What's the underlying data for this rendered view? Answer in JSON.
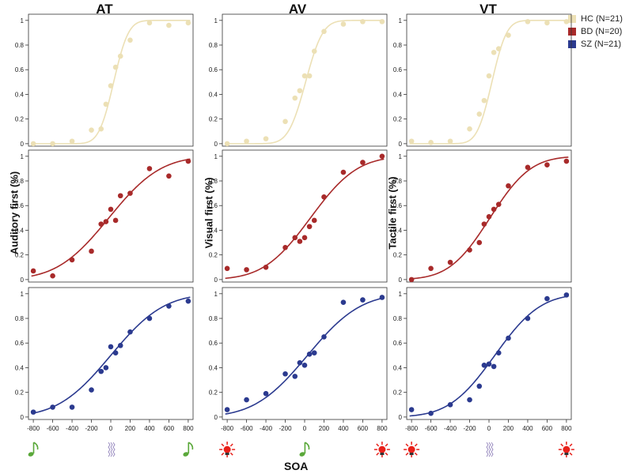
{
  "chart_data": {
    "type": "scatter",
    "columns": [
      "AT",
      "AV",
      "VT"
    ],
    "row_ylabels": [
      "Auditory first (%)",
      "Visual first (%)",
      "Tactile first (%)"
    ],
    "xlabel": "SOA",
    "x_ticks": [
      "-800",
      "-600",
      "-400",
      "-200",
      "0",
      "200",
      "400",
      "600",
      "800"
    ],
    "xlim": [
      -850,
      850
    ],
    "y_ticks": [
      "0",
      "0.2",
      "0.4",
      "0.6",
      "0.8",
      "1"
    ],
    "ylim": [
      -0.02,
      1.05
    ],
    "x": [
      -800,
      -600,
      -400,
      -200,
      -100,
      -50,
      0,
      50,
      100,
      200,
      400,
      600,
      800
    ],
    "legend": [
      {
        "name": "HC (N=21)",
        "color": "#ece0b5"
      },
      {
        "name": "BD (N=20)",
        "color": "#a82a2a"
      },
      {
        "name": "SZ (N=21)",
        "color": "#2b3a8f"
      }
    ],
    "panels": [
      {
        "group": "HC",
        "column": "AT",
        "mu": 30,
        "sigma": 120,
        "values": [
          0.0,
          0.0,
          0.02,
          0.11,
          0.12,
          0.32,
          0.47,
          0.62,
          0.71,
          0.84,
          0.98,
          0.96,
          0.98
        ]
      },
      {
        "group": "HC",
        "column": "AV",
        "mu": 10,
        "sigma": 140,
        "values": [
          0.0,
          0.02,
          0.04,
          0.18,
          0.37,
          0.43,
          0.55,
          0.55,
          0.75,
          0.91,
          0.97,
          0.99,
          0.99
        ]
      },
      {
        "group": "HC",
        "column": "VT",
        "mu": 30,
        "sigma": 120,
        "values": [
          0.02,
          0.01,
          0.02,
          0.12,
          0.24,
          0.35,
          0.55,
          0.74,
          0.77,
          0.88,
          0.99,
          0.98,
          0.99
        ]
      },
      {
        "group": "BD",
        "column": "AT",
        "mu": -20,
        "sigma": 420,
        "values": [
          0.07,
          0.03,
          0.16,
          0.23,
          0.45,
          0.47,
          0.57,
          0.48,
          0.68,
          0.7,
          0.9,
          0.84,
          0.96
        ]
      },
      {
        "group": "BD",
        "column": "AV",
        "mu": 60,
        "sigma": 380,
        "values": [
          0.09,
          0.08,
          0.1,
          0.26,
          0.34,
          0.31,
          0.34,
          0.43,
          0.48,
          0.67,
          0.87,
          0.95,
          1.0
        ]
      },
      {
        "group": "BD",
        "column": "VT",
        "mu": 10,
        "sigma": 330,
        "values": [
          0.0,
          0.09,
          0.14,
          0.24,
          0.3,
          0.45,
          0.51,
          0.57,
          0.61,
          0.76,
          0.91,
          0.93,
          0.96
        ]
      },
      {
        "group": "SZ",
        "column": "AT",
        "mu": 0,
        "sigma": 430,
        "values": [
          0.04,
          0.08,
          0.08,
          0.22,
          0.37,
          0.4,
          0.57,
          0.52,
          0.58,
          0.69,
          0.8,
          0.9,
          0.94
        ]
      },
      {
        "group": "SZ",
        "column": "AV",
        "mu": 30,
        "sigma": 430,
        "values": [
          0.06,
          0.14,
          0.19,
          0.35,
          0.33,
          0.44,
          0.42,
          0.51,
          0.52,
          0.65,
          0.93,
          0.95,
          0.97
        ]
      },
      {
        "group": "SZ",
        "column": "VT",
        "mu": 60,
        "sigma": 370,
        "values": [
          0.06,
          0.03,
          0.1,
          0.14,
          0.25,
          0.42,
          0.43,
          0.41,
          0.52,
          0.64,
          0.8,
          0.96,
          0.99
        ]
      }
    ],
    "stimulus_icons": [
      {
        "column": "AT",
        "left": "note-icon",
        "middle": "vibration-icon",
        "right": "note-icon"
      },
      {
        "column": "AV",
        "left": "light-icon",
        "middle": "note-icon",
        "right": "light-icon"
      },
      {
        "column": "VT",
        "left": "light-icon",
        "middle": "vibration-icon",
        "right": "light-icon"
      }
    ],
    "icon_colors": {
      "note": "#5aa83a",
      "light": "#e8201a",
      "vibration": "#9a8cc0"
    }
  }
}
